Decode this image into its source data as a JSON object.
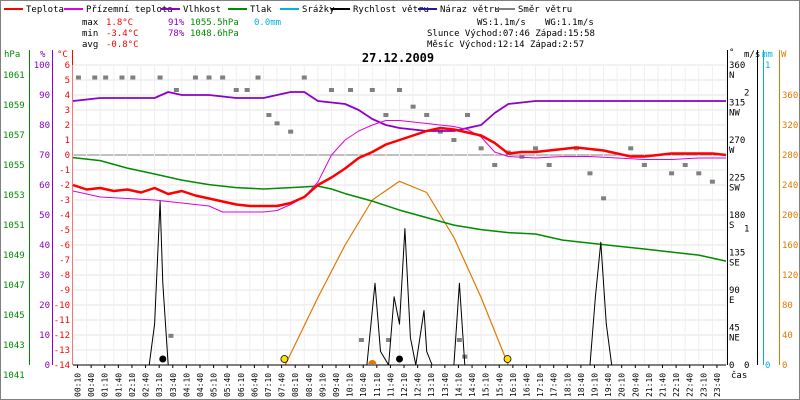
{
  "legend": [
    {
      "label": "Teplota",
      "color": "#ff0000"
    },
    {
      "label": "Přízemní teplota",
      "color": "#e000e0"
    },
    {
      "label": "Vlhkost",
      "color": "#8c00c8"
    },
    {
      "label": "Tlak",
      "color": "#008c00"
    },
    {
      "label": "Srážky",
      "color": "#00b4dc"
    },
    {
      "label": "Rychlost větru",
      "color": "#000000"
    },
    {
      "label": "Náraz větru",
      "color": "#1c1c9c"
    },
    {
      "label": "Směr větru",
      "color": "#808080"
    }
  ],
  "stats": {
    "max_label": "max",
    "max_temp": "1.8°C",
    "max_hum": "91%",
    "max_press": "1055.5hPa",
    "rain_total": "0.0mm",
    "min_label": "min",
    "min_temp": "-3.4°C",
    "min_hum": "78%",
    "min_press": "1048.6hPa",
    "avg_label": "avg",
    "avg_temp": "-0.8°C",
    "ws": "WS:1.1m/s",
    "wg": "WG:1.1m/s",
    "sun": "Slunce Východ:07:46  Západ:15:58",
    "moon": "Měsíc  Východ:12:14  Západ:2:57"
  },
  "colors": {
    "temp": "#ff0000",
    "ground": "#e000e0",
    "hum": "#8c00c8",
    "press": "#008c00",
    "rain": "#00b4dc",
    "wind": "#000000",
    "gust": "#1c1c9c",
    "dir": "#808080",
    "sun_arc": "#e07800",
    "sun_marker": "#ffe000"
  },
  "axes": {
    "hpa_unit": "hPa",
    "pct_unit": "%",
    "degc_unit": "°C",
    "deg_unit": "°",
    "ms_unit": "m/s",
    "mm_unit": "mm",
    "wm2_unit": "W",
    "hpa_ticks": [
      "1061",
      "1059",
      "1057",
      "1055",
      "1053",
      "1051",
      "1049",
      "1047",
      "1045",
      "1043",
      "1041"
    ],
    "pct_ticks": [
      "100",
      "90",
      "80",
      "70",
      "60",
      "50",
      "40",
      "30",
      "20",
      "10",
      "0"
    ],
    "degc_ticks": [
      "6",
      "5",
      "4",
      "3",
      "2",
      "1",
      "0",
      "-1",
      "-2",
      "-3",
      "-4",
      "-5",
      "-6",
      "-7",
      "-8",
      "-9",
      "-10",
      "-11",
      "-12",
      "-13",
      "-14"
    ],
    "dir_ticks": [
      "360",
      "N",
      "315",
      "NW",
      "270",
      "W",
      "225",
      "SW",
      "180",
      "S",
      "135",
      "SE",
      "90",
      "E",
      "45",
      "NE",
      "0"
    ],
    "ms_ticks": [
      "1",
      "2",
      "1",
      "0"
    ],
    "mm_ticks": [
      "1",
      "0"
    ],
    "wm2_ticks": [
      "360",
      "320",
      "280",
      "240",
      "200",
      "160",
      "120",
      "80",
      "40",
      "0"
    ],
    "time_label": "čas"
  },
  "chart_data": {
    "type": "line",
    "title": "27.12.2009",
    "x_labels": [
      "00:10",
      "00:40",
      "01:10",
      "01:40",
      "02:10",
      "02:40",
      "03:10",
      "03:40",
      "04:10",
      "04:40",
      "05:10",
      "05:40",
      "06:10",
      "06:40",
      "07:10",
      "07:40",
      "08:10",
      "08:40",
      "09:10",
      "09:40",
      "10:10",
      "10:40",
      "11:10",
      "11:40",
      "12:10",
      "12:40",
      "13:10",
      "13:40",
      "14:10",
      "14:40",
      "15:10",
      "15:40",
      "16:10",
      "16:40",
      "17:10",
      "17:40",
      "18:10",
      "18:40",
      "19:10",
      "19:40",
      "20:10",
      "20:40",
      "21:10",
      "21:40",
      "22:10",
      "22:40",
      "23:10",
      "23:40"
    ],
    "x_range_hours": [
      0,
      24
    ],
    "series": [
      {
        "name": "Teplota",
        "unit": "°C",
        "points": [
          [
            0.0,
            -2.0
          ],
          [
            0.5,
            -2.3
          ],
          [
            1.0,
            -2.2
          ],
          [
            1.5,
            -2.4
          ],
          [
            2.0,
            -2.3
          ],
          [
            2.5,
            -2.5
          ],
          [
            3.0,
            -2.2
          ],
          [
            3.5,
            -2.6
          ],
          [
            4.0,
            -2.4
          ],
          [
            4.5,
            -2.7
          ],
          [
            5.0,
            -2.9
          ],
          [
            5.5,
            -3.1
          ],
          [
            6.0,
            -3.3
          ],
          [
            6.5,
            -3.4
          ],
          [
            7.0,
            -3.4
          ],
          [
            7.5,
            -3.4
          ],
          [
            8.0,
            -3.2
          ],
          [
            8.5,
            -2.8
          ],
          [
            9.0,
            -2.0
          ],
          [
            9.5,
            -1.5
          ],
          [
            10.0,
            -0.9
          ],
          [
            10.5,
            -0.2
          ],
          [
            11.0,
            0.2
          ],
          [
            11.5,
            0.7
          ],
          [
            12.0,
            1.0
          ],
          [
            12.5,
            1.3
          ],
          [
            13.0,
            1.6
          ],
          [
            13.5,
            1.8
          ],
          [
            14.0,
            1.7
          ],
          [
            14.5,
            1.5
          ],
          [
            15.0,
            1.3
          ],
          [
            15.5,
            0.8
          ],
          [
            16.0,
            0.1
          ],
          [
            16.5,
            0.2
          ],
          [
            17.0,
            0.2
          ],
          [
            17.5,
            0.3
          ],
          [
            18.0,
            0.4
          ],
          [
            18.5,
            0.5
          ],
          [
            19.0,
            0.4
          ],
          [
            19.5,
            0.3
          ],
          [
            20.0,
            0.1
          ],
          [
            20.5,
            -0.1
          ],
          [
            21.0,
            -0.1
          ],
          [
            21.5,
            0.0
          ],
          [
            22.0,
            0.1
          ],
          [
            22.5,
            0.1
          ],
          [
            23.0,
            0.1
          ],
          [
            23.5,
            0.1
          ],
          [
            24.0,
            0.0
          ]
        ]
      },
      {
        "name": "Přízemní teplota",
        "unit": "°C",
        "points": [
          [
            0.0,
            -2.4
          ],
          [
            1.0,
            -2.8
          ],
          [
            2.0,
            -2.9
          ],
          [
            3.0,
            -3.0
          ],
          [
            4.0,
            -3.2
          ],
          [
            5.0,
            -3.4
          ],
          [
            5.5,
            -3.8
          ],
          [
            6.0,
            -3.8
          ],
          [
            7.0,
            -3.8
          ],
          [
            7.5,
            -3.7
          ],
          [
            8.0,
            -3.3
          ],
          [
            8.5,
            -2.8
          ],
          [
            9.0,
            -1.8
          ],
          [
            9.5,
            0.0
          ],
          [
            10.0,
            1.0
          ],
          [
            10.5,
            1.6
          ],
          [
            11.0,
            2.0
          ],
          [
            11.5,
            2.3
          ],
          [
            12.0,
            2.3
          ],
          [
            12.5,
            2.2
          ],
          [
            13.0,
            2.1
          ],
          [
            13.5,
            2.0
          ],
          [
            14.0,
            1.9
          ],
          [
            14.5,
            1.7
          ],
          [
            15.0,
            1.2
          ],
          [
            15.5,
            0.2
          ],
          [
            16.0,
            -0.1
          ],
          [
            17.0,
            -0.2
          ],
          [
            18.0,
            -0.1
          ],
          [
            19.0,
            -0.1
          ],
          [
            20.0,
            -0.2
          ],
          [
            21.0,
            -0.3
          ],
          [
            22.0,
            -0.3
          ],
          [
            23.0,
            -0.2
          ],
          [
            24.0,
            -0.2
          ]
        ]
      },
      {
        "name": "Vlhkost",
        "unit": "%",
        "points": [
          [
            0.0,
            88
          ],
          [
            1.0,
            89
          ],
          [
            2.0,
            89
          ],
          [
            3.0,
            89
          ],
          [
            3.5,
            91
          ],
          [
            4.0,
            90
          ],
          [
            5.0,
            90
          ],
          [
            6.0,
            89
          ],
          [
            7.0,
            89
          ],
          [
            8.0,
            91
          ],
          [
            8.5,
            91
          ],
          [
            9.0,
            88
          ],
          [
            10.0,
            87
          ],
          [
            10.5,
            85
          ],
          [
            11.0,
            82
          ],
          [
            11.5,
            80
          ],
          [
            12.0,
            79
          ],
          [
            13.0,
            78
          ],
          [
            14.0,
            78
          ],
          [
            14.5,
            79
          ],
          [
            15.0,
            80
          ],
          [
            15.5,
            84
          ],
          [
            16.0,
            87
          ],
          [
            17.0,
            88
          ],
          [
            18.0,
            88
          ],
          [
            19.0,
            88
          ],
          [
            20.0,
            88
          ],
          [
            21.0,
            88
          ],
          [
            22.0,
            88
          ],
          [
            23.0,
            88
          ],
          [
            24.0,
            88
          ]
        ]
      },
      {
        "name": "Tlak",
        "unit": "hPa",
        "points": [
          [
            0.0,
            1055.5
          ],
          [
            1.0,
            1055.3
          ],
          [
            2.0,
            1054.8
          ],
          [
            3.0,
            1054.4
          ],
          [
            4.0,
            1054.0
          ],
          [
            5.0,
            1053.7
          ],
          [
            6.0,
            1053.5
          ],
          [
            7.0,
            1053.4
          ],
          [
            8.0,
            1053.5
          ],
          [
            9.0,
            1053.6
          ],
          [
            9.5,
            1053.4
          ],
          [
            10.0,
            1053.1
          ],
          [
            11.0,
            1052.6
          ],
          [
            12.0,
            1052.0
          ],
          [
            13.0,
            1051.5
          ],
          [
            14.0,
            1051.0
          ],
          [
            15.0,
            1050.7
          ],
          [
            16.0,
            1050.5
          ],
          [
            17.0,
            1050.4
          ],
          [
            18.0,
            1050.0
          ],
          [
            19.0,
            1049.8
          ],
          [
            20.0,
            1049.6
          ],
          [
            21.0,
            1049.4
          ],
          [
            22.0,
            1049.2
          ],
          [
            23.0,
            1049.0
          ],
          [
            24.0,
            1048.6
          ]
        ]
      },
      {
        "name": "Rychlost větru",
        "unit": "m/s",
        "points": [
          [
            0.0,
            0
          ],
          [
            2.8,
            0
          ],
          [
            3.0,
            0.3
          ],
          [
            3.2,
            1.2
          ],
          [
            3.3,
            0.6
          ],
          [
            3.5,
            0
          ],
          [
            10.8,
            0
          ],
          [
            11.0,
            0.4
          ],
          [
            11.1,
            0.6
          ],
          [
            11.3,
            0.1
          ],
          [
            11.6,
            0
          ],
          [
            11.8,
            0.5
          ],
          [
            12.0,
            0.3
          ],
          [
            12.2,
            1.0
          ],
          [
            12.4,
            0.2
          ],
          [
            12.6,
            0
          ],
          [
            12.9,
            0.4
          ],
          [
            13.0,
            0.1
          ],
          [
            13.2,
            0
          ],
          [
            14.0,
            0
          ],
          [
            14.2,
            0.6
          ],
          [
            14.4,
            0
          ],
          [
            19.0,
            0
          ],
          [
            19.2,
            0.5
          ],
          [
            19.4,
            0.9
          ],
          [
            19.6,
            0.3
          ],
          [
            19.8,
            0
          ],
          [
            24.0,
            0
          ]
        ]
      },
      {
        "name": "Solární záření",
        "unit": "W",
        "points": [
          [
            7.8,
            0
          ],
          [
            9.0,
            90
          ],
          [
            10.0,
            160
          ],
          [
            11.0,
            220
          ],
          [
            12.0,
            245
          ],
          [
            13.0,
            230
          ],
          [
            14.0,
            170
          ],
          [
            15.0,
            90
          ],
          [
            16.0,
            0
          ]
        ]
      },
      {
        "name": "Směr větru",
        "unit": "°",
        "points": [
          [
            0.2,
            345
          ],
          [
            0.8,
            345
          ],
          [
            1.2,
            345
          ],
          [
            1.8,
            345
          ],
          [
            2.2,
            345
          ],
          [
            3.2,
            345
          ],
          [
            3.8,
            330
          ],
          [
            4.5,
            345
          ],
          [
            5.0,
            345
          ],
          [
            5.5,
            345
          ],
          [
            6.0,
            330
          ],
          [
            6.4,
            330
          ],
          [
            6.8,
            345
          ],
          [
            7.2,
            300
          ],
          [
            7.5,
            290
          ],
          [
            8.0,
            280
          ],
          [
            8.5,
            345
          ],
          [
            9.5,
            330
          ],
          [
            10.2,
            330
          ],
          [
            11.0,
            330
          ],
          [
            11.5,
            300
          ],
          [
            12.0,
            330
          ],
          [
            12.5,
            310
          ],
          [
            13.0,
            300
          ],
          [
            13.5,
            280
          ],
          [
            14.0,
            270
          ],
          [
            14.5,
            300
          ],
          [
            15.0,
            260
          ],
          [
            15.5,
            240
          ],
          [
            16.0,
            255
          ],
          [
            16.5,
            250
          ],
          [
            17.0,
            260
          ],
          [
            17.5,
            240
          ],
          [
            18.5,
            260
          ],
          [
            19.0,
            230
          ],
          [
            19.5,
            200
          ],
          [
            20.5,
            260
          ],
          [
            21.0,
            240
          ],
          [
            22.0,
            230
          ],
          [
            22.5,
            240
          ],
          [
            23.0,
            230
          ],
          [
            23.5,
            220
          ],
          [
            3.6,
            35
          ],
          [
            10.6,
            30
          ],
          [
            11.6,
            30
          ],
          [
            14.2,
            30
          ],
          [
            14.4,
            10
          ]
        ]
      }
    ],
    "markers": [
      {
        "label": "sunrise",
        "x": 7.77
      },
      {
        "label": "sunset",
        "x": 15.97
      }
    ]
  }
}
